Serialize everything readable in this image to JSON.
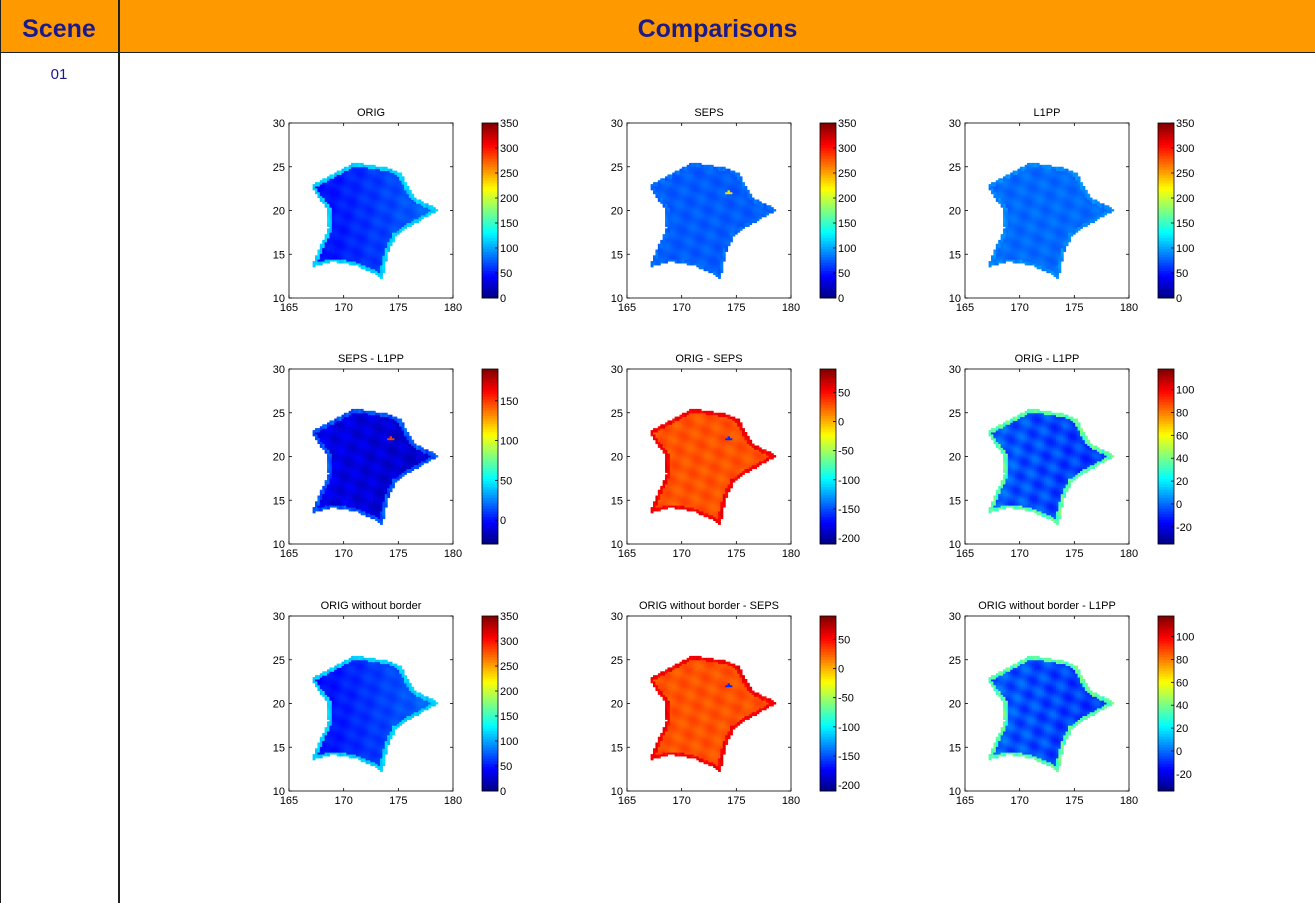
{
  "header": {
    "scene_label": "Scene",
    "comparisons_label": "Comparisons"
  },
  "rows": [
    {
      "scene_id": "01"
    }
  ],
  "colors": {
    "header_bg": "#ff9900",
    "header_text": "#1a1a8c"
  },
  "chart_data": [
    {
      "type": "heatmap",
      "title": "ORIG",
      "xlim": [
        165,
        180
      ],
      "ylim": [
        10,
        30
      ],
      "x_ticks": [
        165,
        170,
        175,
        180
      ],
      "y_ticks": [
        10,
        15,
        20,
        25,
        30
      ],
      "colorbar": {
        "min": 0,
        "max": 350,
        "ticks": [
          0,
          50,
          100,
          150,
          200,
          250,
          300,
          350
        ]
      },
      "field": {
        "base": 60,
        "border": 115,
        "gradient": 45,
        "hotspot": 0
      }
    },
    {
      "type": "heatmap",
      "title": "SEPS",
      "xlim": [
        165,
        180
      ],
      "ylim": [
        10,
        30
      ],
      "x_ticks": [
        165,
        170,
        175,
        180
      ],
      "y_ticks": [
        10,
        15,
        20,
        25,
        30
      ],
      "colorbar": {
        "min": 0,
        "max": 350,
        "ticks": [
          0,
          50,
          100,
          150,
          200,
          250,
          300,
          350
        ]
      },
      "field": {
        "base": 75,
        "border": 80,
        "gradient": 0,
        "hotspot": 230
      }
    },
    {
      "type": "heatmap",
      "title": "L1PP",
      "xlim": [
        165,
        180
      ],
      "ylim": [
        10,
        30
      ],
      "x_ticks": [
        165,
        170,
        175,
        180
      ],
      "y_ticks": [
        10,
        15,
        20,
        25,
        30
      ],
      "colorbar": {
        "min": 0,
        "max": 350,
        "ticks": [
          0,
          50,
          100,
          150,
          200,
          250,
          300,
          350
        ]
      },
      "field": {
        "base": 80,
        "border": 90,
        "gradient": 0,
        "hotspot": 0
      }
    },
    {
      "type": "heatmap",
      "title": "SEPS - L1PP",
      "xlim": [
        165,
        180
      ],
      "ylim": [
        10,
        30
      ],
      "x_ticks": [
        165,
        170,
        175,
        180
      ],
      "y_ticks": [
        10,
        15,
        20,
        25,
        30
      ],
      "colorbar": {
        "min": -30,
        "max": 190,
        "ticks": [
          0,
          50,
          100,
          150
        ]
      },
      "field": {
        "base": -10,
        "border": 15,
        "gradient": -10,
        "hotspot": 150
      }
    },
    {
      "type": "heatmap",
      "title": "ORIG - SEPS",
      "xlim": [
        165,
        180
      ],
      "ylim": [
        10,
        30
      ],
      "x_ticks": [
        165,
        170,
        175,
        180
      ],
      "y_ticks": [
        10,
        15,
        20,
        25,
        30
      ],
      "colorbar": {
        "min": -210,
        "max": 90,
        "ticks": [
          -200,
          -150,
          -100,
          -50,
          0,
          50
        ]
      },
      "field": {
        "base": 28,
        "border": 55,
        "gradient": 0,
        "hotspot": -160
      }
    },
    {
      "type": "heatmap",
      "title": "ORIG - L1PP",
      "xlim": [
        165,
        180
      ],
      "ylim": [
        10,
        30
      ],
      "x_ticks": [
        165,
        170,
        175,
        180
      ],
      "y_ticks": [
        10,
        15,
        20,
        25,
        30
      ],
      "colorbar": {
        "min": -35,
        "max": 118,
        "ticks": [
          -20,
          0,
          20,
          40,
          60,
          80,
          100
        ]
      },
      "field": {
        "base": -5,
        "border": 35,
        "gradient": -8,
        "hotspot": 0
      }
    },
    {
      "type": "heatmap",
      "title": "ORIG without border",
      "xlim": [
        165,
        180
      ],
      "ylim": [
        10,
        30
      ],
      "x_ticks": [
        165,
        170,
        175,
        180
      ],
      "y_ticks": [
        10,
        15,
        20,
        25,
        30
      ],
      "colorbar": {
        "min": 0,
        "max": 350,
        "ticks": [
          0,
          50,
          100,
          150,
          200,
          250,
          300,
          350
        ]
      },
      "field": {
        "base": 60,
        "border": 115,
        "gradient": 45,
        "hotspot": 0
      }
    },
    {
      "type": "heatmap",
      "title": "ORIG without border - SEPS",
      "xlim": [
        165,
        180
      ],
      "ylim": [
        10,
        30
      ],
      "x_ticks": [
        165,
        170,
        175,
        180
      ],
      "y_ticks": [
        10,
        15,
        20,
        25,
        30
      ],
      "colorbar": {
        "min": -210,
        "max": 90,
        "ticks": [
          -200,
          -150,
          -100,
          -50,
          0,
          50
        ]
      },
      "field": {
        "base": 28,
        "border": 55,
        "gradient": 0,
        "hotspot": -160
      }
    },
    {
      "type": "heatmap",
      "title": "ORIG without border - L1PP",
      "xlim": [
        165,
        180
      ],
      "ylim": [
        10,
        30
      ],
      "x_ticks": [
        165,
        170,
        175,
        180
      ],
      "y_ticks": [
        10,
        15,
        20,
        25,
        30
      ],
      "colorbar": {
        "min": -35,
        "max": 118,
        "ticks": [
          -20,
          0,
          20,
          40,
          60,
          80,
          100
        ]
      },
      "field": {
        "base": -5,
        "border": 35,
        "gradient": -8,
        "hotspot": 0
      }
    }
  ]
}
